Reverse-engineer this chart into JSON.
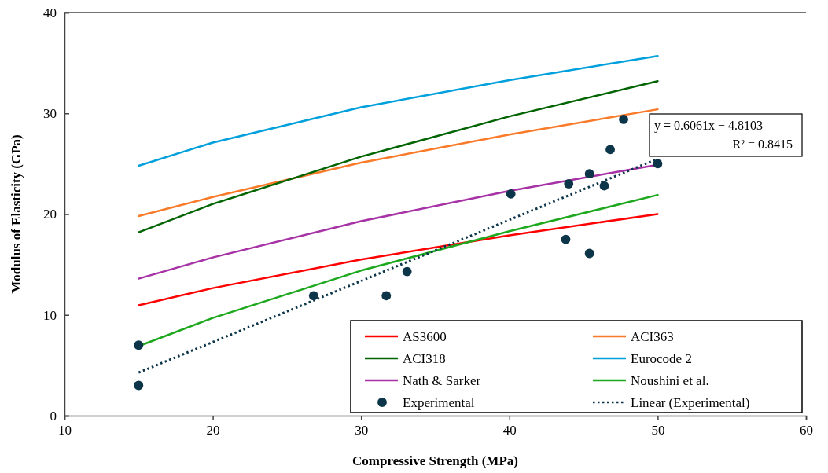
{
  "chart_data": {
    "type": "line",
    "xlabel": "Compressive Strength (MPa)",
    "ylabel": "Modulus of Elasticity (GPa)",
    "xlim": [
      10,
      60
    ],
    "xticks": [
      10,
      20,
      30,
      40,
      50,
      60
    ],
    "ylim": [
      0,
      40
    ],
    "yticks": [
      0,
      10,
      20,
      30,
      40
    ],
    "grid": false,
    "legend": "bottom right",
    "series": [
      {
        "name": "AS3600",
        "color": "#ff0000",
        "x": [
          15,
          20,
          30,
          40,
          50
        ],
        "values": [
          10.96,
          12.66,
          15.5,
          17.9,
          20.0
        ]
      },
      {
        "name": "ACI363",
        "color": "#f97b2a",
        "x": [
          15,
          20,
          30,
          40,
          50
        ],
        "values": [
          19.8,
          21.7,
          25.1,
          27.9,
          30.4
        ]
      },
      {
        "name": "ACI318",
        "color": "#006400",
        "x": [
          15,
          20,
          30,
          40,
          50
        ],
        "values": [
          18.2,
          21.0,
          25.7,
          29.7,
          33.2
        ]
      },
      {
        "name": "Eurocode 2",
        "color": "#00a0dc",
        "x": [
          15,
          20,
          30,
          40,
          50
        ],
        "values": [
          24.8,
          27.1,
          30.6,
          33.3,
          35.7
        ]
      },
      {
        "name": "Nath & Sarker",
        "color": "#a632a6",
        "x": [
          15,
          20,
          30,
          40,
          50
        ],
        "values": [
          13.6,
          15.7,
          19.3,
          22.3,
          24.9
        ]
      },
      {
        "name": "Noushini et al.",
        "color": "#1ea81e",
        "x": [
          15,
          20,
          30,
          40,
          50
        ],
        "values": [
          6.9,
          9.7,
          14.4,
          18.3,
          21.9
        ]
      },
      {
        "name": "Experimental",
        "type": "scatter",
        "marker": "circle",
        "color": "#0c3549",
        "x": [
          15,
          15,
          26.8,
          31.7,
          33.1,
          40.1,
          43.8,
          44.0,
          45.4,
          45.4,
          46.4,
          46.8,
          47.7,
          50.0
        ],
        "values": [
          7.0,
          3.0,
          11.9,
          11.9,
          14.3,
          22.0,
          17.5,
          23.0,
          24.0,
          16.1,
          22.8,
          26.4,
          29.4,
          25.0
        ]
      },
      {
        "name": "Linear (Experimental)",
        "type": "line",
        "line_style": "dotted",
        "color": "#0c3549",
        "x": [
          15,
          50
        ],
        "values": [
          4.28,
          25.49
        ]
      }
    ],
    "annotations": [
      "y = 0.6061x − 4.8103",
      "R² = 0.8415"
    ]
  }
}
